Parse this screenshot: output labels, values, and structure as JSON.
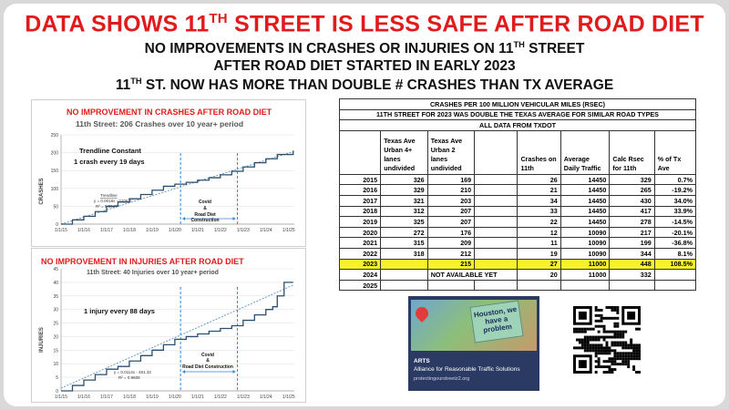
{
  "headline": {
    "a": "DATA SHOWS 11",
    "sup": "TH",
    "b": " STREET IS LESS SAFE AFTER ROAD DIET"
  },
  "sub1": {
    "a": "NO IMPROVEMENTS IN CRASHES OR INJURIES ON 11",
    "sup": "TH",
    "b": " STREET"
  },
  "sub2": "AFTER ROAD DIET STARTED IN EARLY 2023",
  "sub3": {
    "a": "11",
    "sup": "TH",
    "b": " ST. NOW HAS MORE THAN DOUBLE # CRASHES THAN TX AVERAGE"
  },
  "chart_data": [
    {
      "type": "line",
      "title": "NO IMPROVEMENT IN CRASHES AFTER ROAD DIET",
      "subtitle": "11th Street:  206 Crashes over 10 year+ period",
      "annotation": "Trendline Constant",
      "annotation2": "1 crash every 19 days",
      "trend_label": "Trendline",
      "trend_eq": "y = 0.0018x - 2106.2",
      "trend_r2": "R² = 0.9947",
      "covid_label": "Covid",
      "amp": "&",
      "construction_label": "Road Diet",
      "construction_label2": "Construction",
      "ylabel": "CRASHES",
      "ylim": [
        0,
        250
      ],
      "yticks": [
        "0",
        "50",
        "100",
        "150",
        "200",
        "250"
      ],
      "xticks": [
        "1/1/15",
        "1/1/16",
        "1/1/17",
        "1/1/18",
        "1/1/19",
        "1/1/20",
        "1/1/21",
        "1/1/22",
        "1/1/23",
        "1/1/24",
        "1/1/25"
      ],
      "x": [
        2015.0,
        2015.5,
        2016.0,
        2016.5,
        2017.0,
        2017.5,
        2018.0,
        2018.5,
        2019.0,
        2019.5,
        2020.0,
        2020.5,
        2021.0,
        2021.5,
        2022.0,
        2022.5,
        2023.0,
        2023.5,
        2024.0,
        2024.5,
        2025.2
      ],
      "y": [
        0,
        12,
        22,
        35,
        50,
        62,
        71,
        83,
        95,
        106,
        112,
        117,
        123,
        130,
        138,
        148,
        160,
        172,
        183,
        195,
        206
      ],
      "trend": [
        [
          2015.0,
          0
        ],
        [
          2025.2,
          203
        ]
      ],
      "markers": [
        2020.25,
        2022.75
      ]
    },
    {
      "type": "line",
      "title": "NO IMPROVEMENT IN INJURIES AFTER ROAD DIET",
      "subtitle": "11th Street:  40 Injuries over 10 year+ period",
      "annotation": "1 injury every 88 days",
      "trend_eq": "y = 0.0114x - 481.32",
      "trend_r2": "R² = 0.9608",
      "covid_label": "Covid",
      "amp": "&",
      "construction_label": "Road Diet Construction",
      "ylabel": "INJURIES",
      "ylim": [
        0,
        45
      ],
      "yticks": [
        "0",
        "5",
        "10",
        "15",
        "20",
        "25",
        "30",
        "35",
        "40",
        "45"
      ],
      "xticks": [
        "1/1/15",
        "1/1/16",
        "1/1/17",
        "1/1/18",
        "1/1/19",
        "1/1/20",
        "1/1/21",
        "1/1/22",
        "1/1/23",
        "1/1/24",
        "1/1/25"
      ],
      "x": [
        2015.0,
        2015.5,
        2016.0,
        2016.5,
        2017.0,
        2017.5,
        2018.0,
        2018.5,
        2019.0,
        2019.5,
        2020.0,
        2020.5,
        2021.0,
        2021.5,
        2022.0,
        2022.5,
        2023.0,
        2023.5,
        2024.0,
        2024.3,
        2024.5,
        2024.8,
        2025.2
      ],
      "y": [
        0,
        2,
        4,
        6,
        8,
        9,
        11,
        13,
        15,
        17,
        19,
        20,
        21,
        22,
        23,
        24,
        26,
        28,
        30,
        31,
        35,
        40,
        40
      ],
      "trend": [
        [
          2015.0,
          1
        ],
        [
          2025.2,
          39
        ]
      ],
      "markers": [
        2020.25,
        2022.75
      ]
    }
  ],
  "table": {
    "title1": "CRASHES PER 100 MILLION VEHICULAR MILES (RSEC)",
    "title2": "11TH STREET FOR 2023 WAS DOUBLE THE TEXAS AVERAGE FOR SIMILAR ROAD TYPES",
    "title3": "ALL DATA FROM TXDOT",
    "headers": [
      "",
      "Texas Ave Urban 4+ lanes undivided",
      "Texas Ave Urban 2 lanes undivided",
      "",
      "Crashes on 11th",
      "Average Daily Traffic",
      "Calc Rsec for 11th",
      "% of Tx Ave"
    ],
    "rows": [
      [
        "2015",
        "326",
        "169",
        "",
        "26",
        "14450",
        "329",
        "0.7%"
      ],
      [
        "2016",
        "329",
        "210",
        "",
        "21",
        "14450",
        "265",
        "-19.2%"
      ],
      [
        "2017",
        "321",
        "203",
        "",
        "34",
        "14450",
        "430",
        "34.0%"
      ],
      [
        "2018",
        "312",
        "207",
        "",
        "33",
        "14450",
        "417",
        "33.9%"
      ],
      [
        "2019",
        "325",
        "207",
        "",
        "22",
        "14450",
        "278",
        "-14.5%"
      ],
      [
        "2020",
        "272",
        "176",
        "",
        "12",
        "10090",
        "217",
        "-20.1%"
      ],
      [
        "2021",
        "315",
        "209",
        "",
        "11",
        "10090",
        "199",
        "-36.8%"
      ],
      [
        "2022",
        "318",
        "212",
        "",
        "19",
        "10090",
        "344",
        "8.1%"
      ],
      [
        "2023",
        "",
        "215",
        "",
        "27",
        "11000",
        "448",
        "108.5%"
      ],
      [
        "2024",
        "",
        "NOT AVAILABLE YET",
        "",
        "20",
        "11000",
        "332",
        ""
      ],
      [
        "2025",
        "",
        "",
        "",
        "",
        "",
        "",
        ""
      ]
    ],
    "highlight_year": "2023",
    "highlight_color": "#f8f22e"
  },
  "logo": {
    "note": "Houston, we have a problem",
    "org_short": "ARTS",
    "org_name": "Alliance for Reasonable Traffic Solutions",
    "site": "protectingourstreetz2.org"
  },
  "colors": {
    "headline": "#e01b1b",
    "series": "#2c4f6e",
    "trend": "#5b8fc0",
    "marker": "#2e86de",
    "highlight": "#f8f22e"
  }
}
